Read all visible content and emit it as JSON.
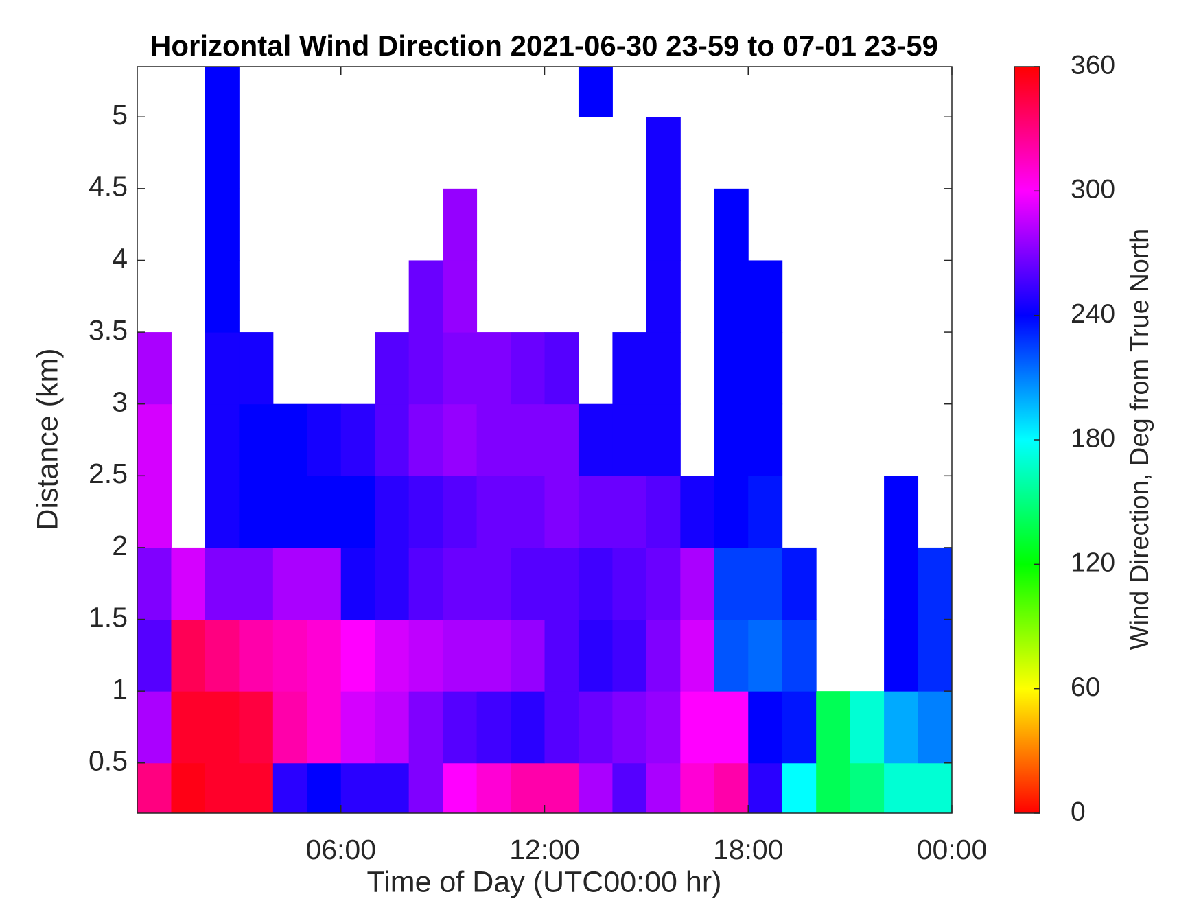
{
  "chart_data": {
    "type": "heatmap",
    "title": "Horizontal Wind Direction 2021-06-30 23-59 to 07-01 23-59",
    "xlabel": "Time of Day (UTC00:00 hr)",
    "ylabel": "Distance (km)",
    "colorbar_label": "Wind Direction, Deg from True North",
    "colormap": "hsv",
    "x_bins": [
      0,
      1,
      2,
      3,
      4,
      5,
      6,
      7,
      8,
      9,
      10,
      11,
      12,
      13,
      14,
      15,
      16,
      17,
      18,
      19,
      20,
      21,
      22,
      23,
      24
    ],
    "y_bins": [
      0.15,
      0.5,
      1,
      1.5,
      2,
      2.5,
      3,
      3.5,
      4,
      4.5,
      5,
      5.35
    ],
    "z": [
      [
        330,
        355,
        350,
        350,
        250,
        240,
        250,
        250,
        270,
        300,
        310,
        320,
        320,
        280,
        260,
        280,
        310,
        320,
        250,
        180,
        140,
        150,
        170,
        170
      ],
      [
        280,
        350,
        350,
        345,
        320,
        310,
        290,
        285,
        270,
        260,
        255,
        250,
        260,
        265,
        270,
        275,
        300,
        300,
        240,
        235,
        140,
        170,
        200,
        210
      ],
      [
        260,
        340,
        330,
        320,
        315,
        310,
        300,
        290,
        285,
        280,
        280,
        275,
        260,
        250,
        255,
        270,
        290,
        220,
        215,
        225,
        null,
        null,
        240,
        230
      ],
      [
        270,
        290,
        270,
        270,
        280,
        280,
        245,
        250,
        260,
        265,
        265,
        260,
        260,
        255,
        260,
        265,
        280,
        225,
        225,
        235,
        null,
        null,
        240,
        230
      ],
      [
        290,
        null,
        245,
        240,
        240,
        240,
        240,
        250,
        255,
        260,
        265,
        265,
        270,
        265,
        265,
        260,
        245,
        240,
        235,
        null,
        null,
        null,
        240,
        null
      ],
      [
        290,
        null,
        245,
        240,
        240,
        245,
        250,
        260,
        270,
        275,
        270,
        270,
        270,
        245,
        245,
        245,
        null,
        240,
        240,
        null,
        null,
        null,
        null,
        null
      ],
      [
        280,
        null,
        245,
        245,
        null,
        null,
        null,
        260,
        265,
        270,
        270,
        265,
        260,
        null,
        245,
        245,
        null,
        240,
        240,
        null,
        null,
        null,
        null,
        null
      ],
      [
        null,
        null,
        240,
        null,
        null,
        null,
        null,
        null,
        265,
        275,
        null,
        null,
        null,
        null,
        null,
        245,
        null,
        240,
        240,
        null,
        null,
        null,
        null,
        null
      ],
      [
        null,
        null,
        240,
        null,
        null,
        null,
        null,
        null,
        null,
        275,
        null,
        null,
        null,
        null,
        null,
        245,
        null,
        240,
        null,
        null,
        null,
        null,
        null,
        null
      ],
      [
        null,
        null,
        240,
        null,
        null,
        null,
        null,
        null,
        null,
        null,
        null,
        null,
        null,
        null,
        null,
        245,
        null,
        null,
        null,
        null,
        null,
        null,
        null,
        null
      ],
      [
        null,
        null,
        240,
        null,
        null,
        null,
        null,
        null,
        null,
        null,
        null,
        null,
        null,
        240,
        null,
        null,
        null,
        null,
        null,
        null,
        null,
        null,
        null,
        null
      ]
    ],
    "xlim": [
      0,
      24
    ],
    "xticks": [
      {
        "value": 6,
        "label": "06:00"
      },
      {
        "value": 12,
        "label": "12:00"
      },
      {
        "value": 18,
        "label": "18:00"
      },
      {
        "value": 24,
        "label": "00:00"
      }
    ],
    "ylim": [
      0.15,
      5.35
    ],
    "yticks": [
      0.5,
      1,
      1.5,
      2,
      2.5,
      3,
      3.5,
      4,
      4.5,
      5
    ],
    "clim": [
      0,
      360
    ],
    "cticks": [
      0,
      60,
      120,
      180,
      240,
      300,
      360
    ]
  }
}
